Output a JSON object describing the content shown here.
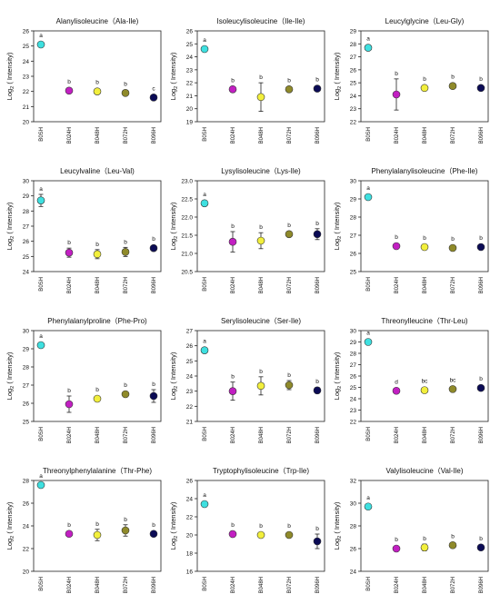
{
  "y_label_base": "Log",
  "y_label_sub": "2",
  "y_label_rest": " ( Intensity)",
  "categories": [
    "B0SH",
    "B024H",
    "B048H",
    "B072H",
    "B096H"
  ],
  "colors": [
    "#3ee0e0",
    "#c21fc2",
    "#f2ef3c",
    "#8f8a2a",
    "#0b0b55"
  ],
  "chart_data": [
    {
      "type": "scatter",
      "title": "Alanylisoleucine（Ala-Ile)",
      "ylim": [
        20,
        26
      ],
      "ticks": [
        20,
        21,
        22,
        23,
        24,
        25,
        26
      ],
      "values": [
        25.1,
        22.05,
        22.0,
        21.9,
        21.6
      ],
      "errors": [
        0.12,
        0.1,
        0.1,
        0.12,
        0.08
      ],
      "letters": [
        "a",
        "b",
        "b",
        "b",
        "c"
      ]
    },
    {
      "type": "scatter",
      "title": "Isoleucylisoleucine（Ile-Ile)",
      "ylim": [
        19,
        26
      ],
      "ticks": [
        19,
        20,
        21,
        22,
        23,
        24,
        25,
        26
      ],
      "values": [
        24.6,
        21.5,
        20.9,
        21.5,
        21.55
      ],
      "errors": [
        0.15,
        0.15,
        1.1,
        0.1,
        0.1
      ],
      "letters": [
        "a",
        "b",
        "b",
        "b",
        "b"
      ]
    },
    {
      "type": "scatter",
      "title": "Leucylglycine（Leu-Gly)",
      "ylim": [
        22,
        29
      ],
      "ticks": [
        22,
        23,
        24,
        25,
        26,
        27,
        28,
        29
      ],
      "values": [
        27.7,
        24.1,
        24.6,
        24.75,
        24.6
      ],
      "errors": [
        0.15,
        1.2,
        0.15,
        0.1,
        0.1
      ],
      "letters": [
        "a",
        "b",
        "b",
        "b",
        "b"
      ]
    },
    {
      "type": "scatter",
      "title": "Leucylvaline（Leu-Val)",
      "ylim": [
        24,
        30
      ],
      "ticks": [
        24,
        25,
        26,
        27,
        28,
        29,
        30
      ],
      "values": [
        28.7,
        25.25,
        25.15,
        25.3,
        25.55
      ],
      "errors": [
        0.4,
        0.3,
        0.3,
        0.3,
        0.1
      ],
      "letters": [
        "a",
        "b",
        "b",
        "b",
        "b"
      ]
    },
    {
      "type": "scatter",
      "title": "Lysylisoleucine（Lys-Ile)",
      "ylim": [
        20.5,
        23.0
      ],
      "ticks": [
        20.5,
        21.0,
        21.5,
        22.0,
        22.5,
        23.0
      ],
      "values": [
        22.38,
        21.32,
        21.35,
        21.53,
        21.53
      ],
      "errors": [
        0.05,
        0.28,
        0.22,
        0.04,
        0.15
      ],
      "letters": [
        "a",
        "b",
        "b",
        "b",
        "b"
      ]
    },
    {
      "type": "scatter",
      "title": "Phenylalanylisoleucine（Phe-Ile)",
      "ylim": [
        25,
        30
      ],
      "ticks": [
        25,
        26,
        27,
        28,
        29,
        30
      ],
      "values": [
        29.1,
        26.4,
        26.35,
        26.3,
        26.35
      ],
      "errors": [
        0.1,
        0.1,
        0.15,
        0.1,
        0.08
      ],
      "letters": [
        "a",
        "b",
        "b",
        "b",
        "b"
      ]
    },
    {
      "type": "scatter",
      "title": "Phenylalanylproline（Phe-Pro)",
      "ylim": [
        25,
        30
      ],
      "ticks": [
        25,
        26,
        27,
        28,
        29,
        30
      ],
      "values": [
        29.2,
        25.95,
        26.25,
        26.5,
        26.4
      ],
      "errors": [
        0.1,
        0.45,
        0.15,
        0.15,
        0.35
      ],
      "letters": [
        "a",
        "b",
        "b",
        "b",
        "b"
      ]
    },
    {
      "type": "scatter",
      "title": "Serylisoleucine（Ser-Ile)",
      "ylim": [
        21,
        27
      ],
      "ticks": [
        21,
        22,
        23,
        24,
        25,
        26,
        27
      ],
      "values": [
        25.7,
        23.0,
        23.35,
        23.4,
        23.05
      ],
      "errors": [
        0.1,
        0.6,
        0.6,
        0.3,
        0.2
      ],
      "letters": [
        "a",
        "b",
        "b",
        "b",
        "b"
      ]
    },
    {
      "type": "scatter",
      "title": "Threonylleucine（Thr-Leu)",
      "ylim": [
        22,
        30
      ],
      "ticks": [
        22,
        23,
        24,
        25,
        26,
        27,
        28,
        29,
        30
      ],
      "values": [
        29.0,
        24.7,
        24.75,
        24.85,
        24.95
      ],
      "errors": [
        0.1,
        0.1,
        0.1,
        0.1,
        0.05
      ],
      "letters": [
        "a",
        "d",
        "bc",
        "bc",
        "b"
      ]
    },
    {
      "type": "scatter",
      "title": "Threonylphenylalanine（Thr-Phe)",
      "ylim": [
        20,
        28
      ],
      "ticks": [
        20,
        22,
        24,
        26,
        28
      ],
      "values": [
        27.6,
        23.3,
        23.2,
        23.6,
        23.3
      ],
      "errors": [
        0.2,
        0.2,
        0.5,
        0.5,
        0.2
      ],
      "letters": [
        "a",
        "b",
        "b",
        "b",
        "b"
      ]
    },
    {
      "type": "scatter",
      "title": "Tryptophylisoleucine（Trp-Ile)",
      "ylim": [
        16,
        26
      ],
      "ticks": [
        16,
        18,
        20,
        22,
        24,
        26
      ],
      "values": [
        23.4,
        20.1,
        20.0,
        20.0,
        19.3
      ],
      "errors": [
        0.2,
        0.2,
        0.2,
        0.2,
        0.8
      ],
      "letters": [
        "a",
        "b",
        "b",
        "b",
        "b"
      ]
    },
    {
      "type": "scatter",
      "title": "Valylisoleucine（Val-Ile)",
      "ylim": [
        24,
        32
      ],
      "ticks": [
        24,
        26,
        28,
        30,
        32
      ],
      "values": [
        29.7,
        26.0,
        26.1,
        26.3,
        26.1
      ],
      "errors": [
        0.2,
        0.15,
        0.3,
        0.15,
        0.1
      ],
      "letters": [
        "a",
        "b",
        "b",
        "b",
        "b"
      ]
    }
  ]
}
